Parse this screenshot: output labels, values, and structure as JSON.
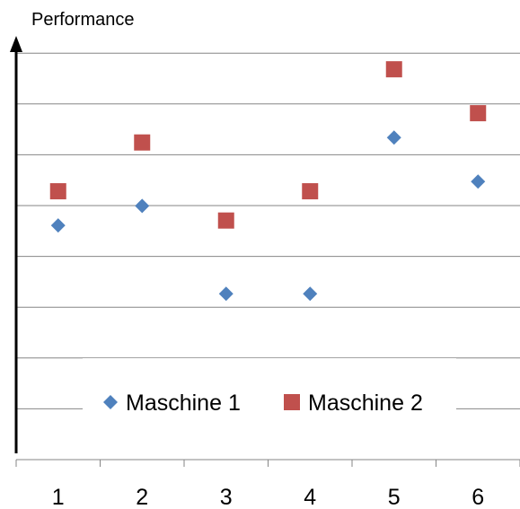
{
  "chart_data": {
    "type": "scatter",
    "ylabel": "Performance",
    "xlabel": "",
    "categories": [
      "1",
      "2",
      "3",
      "4",
      "5",
      "6"
    ],
    "y_axis_tick_labels": "none",
    "ylim": [
      0,
      8.5
    ],
    "grid": "horizontal",
    "legend_position": "bottom-center",
    "series": [
      {
        "name": "Maschine 1",
        "marker": "diamond",
        "color": "#4F81BD",
        "values": [
          4.8,
          5.2,
          3.4,
          3.4,
          6.6,
          5.7
        ]
      },
      {
        "name": "Maschine 2",
        "marker": "square",
        "color": "#C0504D",
        "values": [
          5.5,
          6.5,
          4.9,
          5.5,
          8.0,
          7.1
        ]
      }
    ]
  }
}
